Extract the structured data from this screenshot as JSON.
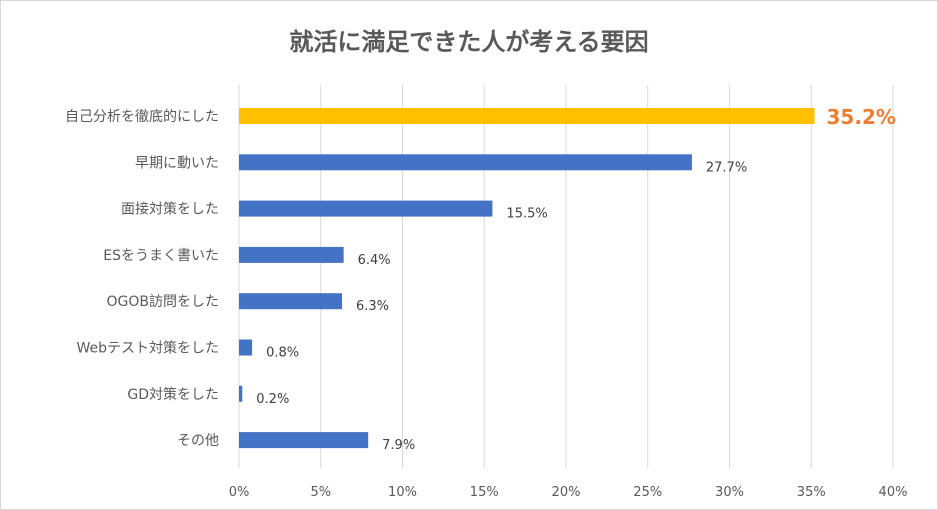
{
  "chart_data": {
    "type": "bar",
    "orientation": "horizontal",
    "title": "就活に満足できた人が考える要因",
    "categories": [
      "自己分析を徹底的にした",
      "早期に動いた",
      "面接対策をした",
      "ESをうまく書いた",
      "OGOB訪問をした",
      "Webテスト対策をした",
      "GD対策をした",
      "その他"
    ],
    "values": [
      35.2,
      27.7,
      15.5,
      6.4,
      6.3,
      0.8,
      0.2,
      7.9
    ],
    "data_labels": [
      "35.2%",
      "27.7%",
      "15.5%",
      "6.4%",
      "6.3%",
      "0.8%",
      "0.2%",
      "7.9%"
    ],
    "xlim": [
      0,
      40
    ],
    "x_ticks": [
      "0%",
      "5%",
      "10%",
      "15%",
      "20%",
      "25%",
      "30%",
      "35%",
      "40%"
    ],
    "grid": "vertical",
    "legend": "none",
    "colors": {
      "bar": "#4472c4",
      "highlight_bar": "#ffc000",
      "highlight_label": "#ed7d31",
      "grid": "#d9d9d9"
    },
    "highlight_index": 0
  }
}
